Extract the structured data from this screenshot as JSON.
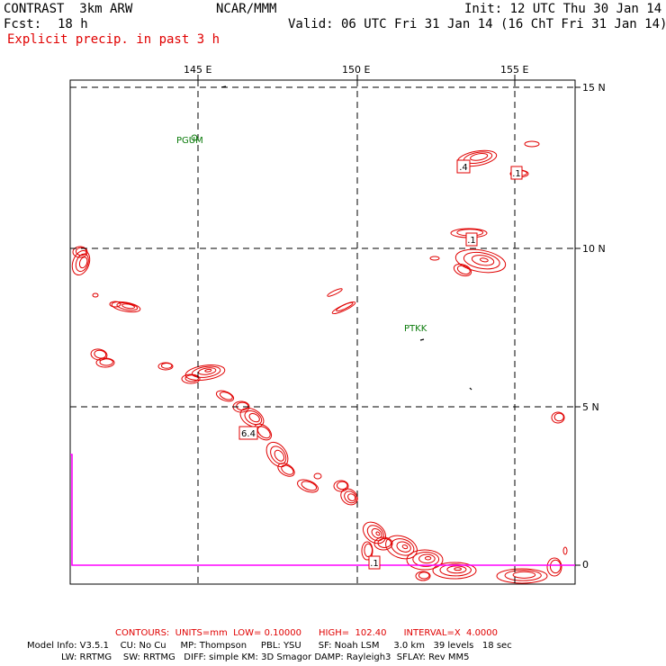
{
  "header": {
    "model": "CONTRAST  3km ARW",
    "org": "NCAR/MMM",
    "init": "Init: 12 UTC Thu 30 Jan 14",
    "fcst_label": "Fcst:",
    "fcst_value": "18 h",
    "valid": "Valid: 06 UTC Fri 31 Jan 14 (16 ChT Fri 31 Jan 14)",
    "field": "Explicit precip. in past 3 h"
  },
  "map": {
    "lon_labels": [
      "145 E",
      "150 E",
      "155 E"
    ],
    "lat_labels": [
      "15 N",
      "10 N",
      "5 N",
      "0"
    ],
    "stations": [
      {
        "id": "PGUM"
      },
      {
        "id": "PTKK"
      }
    ],
    "contour_labels": [
      ".4",
      ".1",
      ".1",
      "6.4",
      ".1"
    ],
    "colors": {
      "contour": "#e00000",
      "boundary": "#ff00ff",
      "grid": "#000000",
      "station": "#0a7a0a"
    }
  },
  "footer": {
    "contours": "CONTOURS:  UNITS=mm  LOW= 0.10000      HIGH=  102.40      INTERVAL=X  4.0000",
    "model_info_1": "Model Info: V3.5.1    CU: No Cu     MP: Thompson     PBL: YSU      SF: Noah LSM     3.0 km   39 levels   18 sec",
    "model_info_2": "LW: RRTMG    SW: RRTMG   DIFF: simple KM: 3D Smagor DAMP: Rayleigh3  SFLAY: Rev MM5"
  }
}
